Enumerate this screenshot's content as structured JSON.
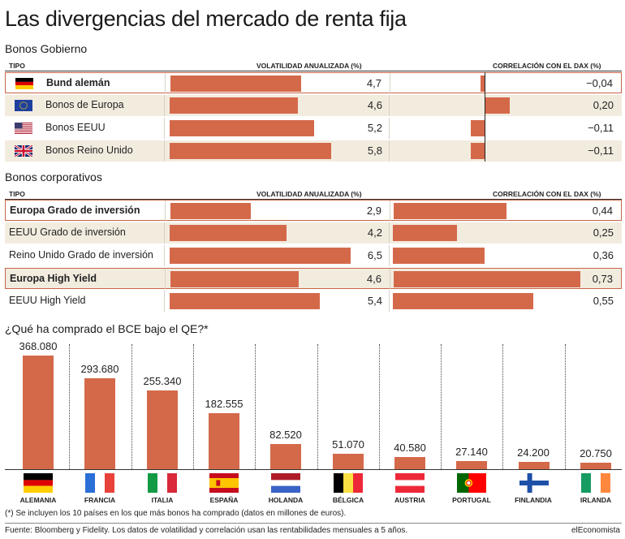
{
  "title": "Las divergencias del mercado de renta fija",
  "gov": {
    "section": "Bonos Gobierno",
    "col_tipo": "TIPO",
    "col_vol": "VOLATILIDAD ANUALIZADA (%)",
    "col_cor": "CORRELACIÓN CON EL DAX (%)",
    "rows": [
      {
        "label": "Bund alemán",
        "vol": "4,7",
        "cor": "−0,04",
        "vol_value": 4.7,
        "cor_value": -0.04,
        "flag": "germany-flag",
        "bold": true,
        "highlight": true
      },
      {
        "label": "Bonos de Europa",
        "vol": "4,6",
        "cor": "0,20",
        "vol_value": 4.6,
        "cor_value": 0.2,
        "flag": "eu-flag",
        "bold": false,
        "highlight": false
      },
      {
        "label": "Bonos EEUU",
        "vol": "5,2",
        "cor": "−0,11",
        "vol_value": 5.2,
        "cor_value": -0.11,
        "flag": "usa-flag",
        "bold": false,
        "highlight": false
      },
      {
        "label": "Bonos Reino Unido",
        "vol": "5,8",
        "cor": "−0,11",
        "vol_value": 5.8,
        "cor_value": -0.11,
        "flag": "uk-flag",
        "bold": false,
        "highlight": false
      }
    ]
  },
  "corp": {
    "section": "Bonos corporativos",
    "col_tipo": "TIPO",
    "col_vol": "VOLATILIDAD ANUALIZADA (%)",
    "col_cor": "CORRELACIÓN CON EL DAX (%)",
    "rows": [
      {
        "label": "Europa Grado de inversión",
        "vol": "2,9",
        "cor": "0,44",
        "vol_value": 2.9,
        "cor_value": 0.44,
        "bold": true,
        "highlight": true
      },
      {
        "label": "EEUU Grado de inversión",
        "vol": "4,2",
        "cor": "0,25",
        "vol_value": 4.2,
        "cor_value": 0.25,
        "bold": false,
        "highlight": false
      },
      {
        "label": "Reino Unido Grado de inversión",
        "vol": "6,5",
        "cor": "0,36",
        "vol_value": 6.5,
        "cor_value": 0.36,
        "bold": false,
        "highlight": false
      },
      {
        "label": "Europa High Yield",
        "vol": "4,6",
        "cor": "0,73",
        "vol_value": 4.6,
        "cor_value": 0.73,
        "bold": true,
        "highlight": true
      },
      {
        "label": "EEUU High Yield",
        "vol": "5,4",
        "cor": "0,55",
        "vol_value": 5.4,
        "cor_value": 0.55,
        "bold": false,
        "highlight": false
      }
    ]
  },
  "bce": {
    "section": "¿Qué ha comprado el BCE bajo el QE?*",
    "note": "(*) Se incluyen los 10 países en los que más bonos ha comprado (datos en millones de euros).",
    "items": [
      {
        "country": "ALEMANIA",
        "label": "368.080",
        "value": 368080,
        "flag": "germany-flag"
      },
      {
        "country": "FRANCIA",
        "label": "293.680",
        "value": 293680,
        "flag": "france-flag"
      },
      {
        "country": "ITALIA",
        "label": "255.340",
        "value": 255340,
        "flag": "italy-flag"
      },
      {
        "country": "ESPAÑA",
        "label": "182.555",
        "value": 182555,
        "flag": "spain-flag"
      },
      {
        "country": "HOLANDA",
        "label": "82.520",
        "value": 82520,
        "flag": "netherlands-flag"
      },
      {
        "country": "BÉLGICA",
        "label": "51.070",
        "value": 51070,
        "flag": "belgium-flag"
      },
      {
        "country": "AUSTRIA",
        "label": "40.580",
        "value": 40580,
        "flag": "austria-flag"
      },
      {
        "country": "PORTUGAL",
        "label": "27.140",
        "value": 27140,
        "flag": "portugal-flag"
      },
      {
        "country": "FINLANDIA",
        "label": "24.200",
        "value": 24200,
        "flag": "finland-flag"
      },
      {
        "country": "IRLANDA",
        "label": "20.750",
        "value": 20750,
        "flag": "ireland-flag"
      }
    ]
  },
  "footer": {
    "source": "Fuente: Bloomberg y Fidelity. Los datos de volatilidad y correlación usan las rentabilidades mensuales a 5 años.",
    "brand": "elEconomista"
  },
  "colors": {
    "bar": "#d4694a",
    "alt_row": "#f2ecdf",
    "highlight_border": "#c8654a"
  },
  "chart_data": [
    {
      "type": "bar",
      "title": "Bonos Gobierno",
      "categories": [
        "Bund alemán",
        "Bonos de Europa",
        "Bonos EEUU",
        "Bonos Reino Unido"
      ],
      "series": [
        {
          "name": "VOLATILIDAD ANUALIZADA (%)",
          "values": [
            4.7,
            4.6,
            5.2,
            5.8
          ]
        },
        {
          "name": "CORRELACIÓN CON EL DAX (%)",
          "values": [
            -0.04,
            0.2,
            -0.11,
            -0.11
          ]
        }
      ]
    },
    {
      "type": "bar",
      "title": "Bonos corporativos",
      "categories": [
        "Europa Grado de inversión",
        "EEUU Grado de inversión",
        "Reino Unido Grado de inversión",
        "Europa High Yield",
        "EEUU High Yield"
      ],
      "series": [
        {
          "name": "VOLATILIDAD ANUALIZADA (%)",
          "values": [
            2.9,
            4.2,
            6.5,
            4.6,
            5.4
          ]
        },
        {
          "name": "CORRELACIÓN CON EL DAX (%)",
          "values": [
            0.44,
            0.25,
            0.36,
            0.73,
            0.55
          ]
        }
      ]
    },
    {
      "type": "bar",
      "title": "¿Qué ha comprado el BCE bajo el QE?*",
      "categories": [
        "ALEMANIA",
        "FRANCIA",
        "ITALIA",
        "ESPAÑA",
        "HOLANDA",
        "BÉLGICA",
        "AUSTRIA",
        "PORTUGAL",
        "FINLANDIA",
        "IRLANDA"
      ],
      "values": [
        368080,
        293680,
        255340,
        182555,
        82520,
        51070,
        40580,
        27140,
        24200,
        20750
      ]
    }
  ]
}
